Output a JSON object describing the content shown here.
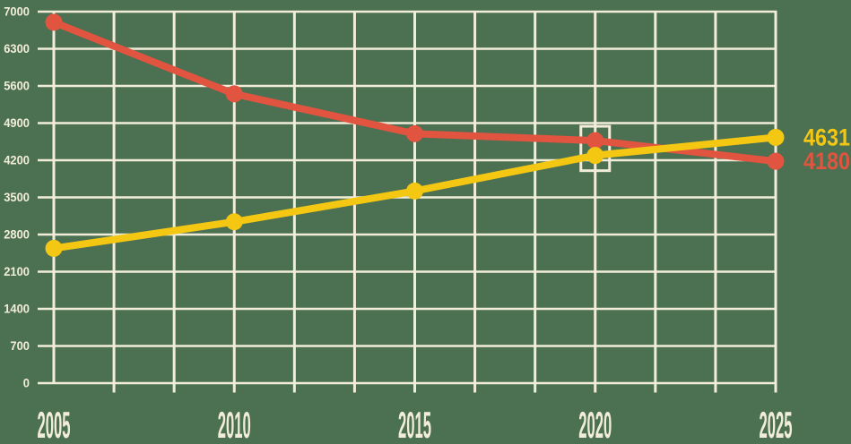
{
  "page": {
    "background_color": "#4C7052"
  },
  "chart_data": {
    "type": "line",
    "title": "",
    "xlabel": "",
    "ylabel": "",
    "x": [
      2005,
      2010,
      2015,
      2020,
      2025
    ],
    "xticks": [
      "2005",
      "2010",
      "2015",
      "2020",
      "2025"
    ],
    "yticks": [
      "0",
      "700",
      "1400",
      "2100",
      "2800",
      "3500",
      "4200",
      "4900",
      "5600",
      "6300",
      "7000"
    ],
    "ylim": [
      0,
      7000
    ],
    "ytick_step": 700,
    "grid": true,
    "minor_x_per_interval": 3,
    "legend_position": "none",
    "series": [
      {
        "name": "red-declining-series",
        "color": "#E1543F",
        "values": [
          6800,
          5450,
          4700,
          4570,
          4180
        ],
        "end_label": "4180"
      },
      {
        "name": "yellow-rising-series",
        "color": "#F4C713",
        "values": [
          2540,
          3040,
          3620,
          4290,
          4631
        ],
        "end_label": "4631"
      }
    ],
    "highlight": {
      "x": 2020,
      "style": "white-outline-box"
    },
    "colors": {
      "grid": "#F2EDDA",
      "tick_text": "#F2EDDA",
      "highlight_box": "#F2EDDA"
    }
  }
}
